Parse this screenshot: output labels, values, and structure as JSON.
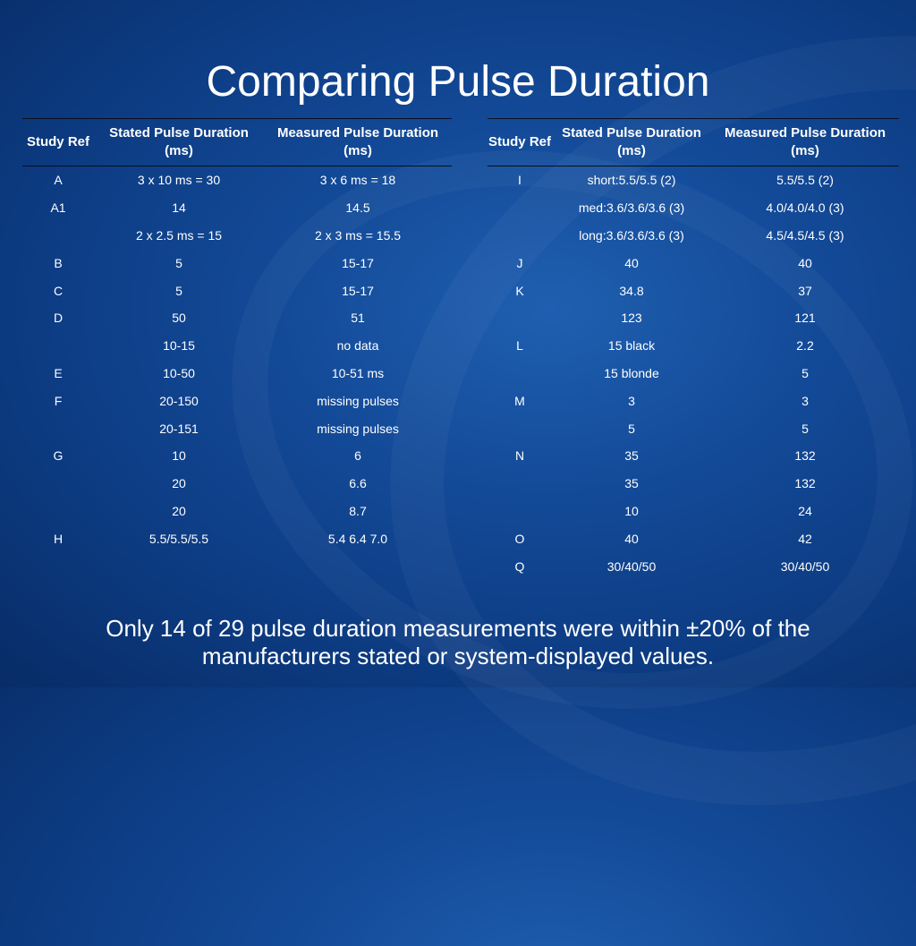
{
  "slide": {
    "title": "Comparing Pulse Duration",
    "footer": "Only 14 of 29 pulse duration measurements were within ±20% of the manufacturers stated or system-displayed values."
  },
  "tables": {
    "columns": [
      "Study Ref",
      "Stated Pulse Duration (ms)",
      "Measured Pulse Duration (ms)"
    ],
    "left_rows": [
      [
        "A",
        "3 x 10 ms = 30",
        "3 x 6 ms = 18"
      ],
      [
        "A1",
        "14",
        "14.5"
      ],
      [
        "",
        "2 x 2.5 ms = 15",
        "2 x 3 ms = 15.5"
      ],
      [
        "B",
        "5",
        "15-17"
      ],
      [
        "C",
        "5",
        "15-17"
      ],
      [
        "D",
        "50",
        "51"
      ],
      [
        "",
        "10-15",
        "no data"
      ],
      [
        "E",
        "10-50",
        "10-51 ms"
      ],
      [
        "F",
        "20-150",
        "missing pulses"
      ],
      [
        "",
        "20-151",
        "missing pulses"
      ],
      [
        "G",
        "10",
        "6"
      ],
      [
        "",
        "20",
        "6.6"
      ],
      [
        "",
        "20",
        "8.7"
      ],
      [
        "H",
        "5.5/5.5/5.5",
        "5.4 6.4 7.0"
      ]
    ],
    "right_rows": [
      [
        "I",
        "short:5.5/5.5 (2)",
        "5.5/5.5 (2)"
      ],
      [
        "",
        "med:3.6/3.6/3.6 (3)",
        "4.0/4.0/4.0 (3)"
      ],
      [
        "",
        "long:3.6/3.6/3.6 (3)",
        "4.5/4.5/4.5 (3)"
      ],
      [
        "J",
        "40",
        "40"
      ],
      [
        "K",
        "34.8",
        "37"
      ],
      [
        "",
        "123",
        "121"
      ],
      [
        "L",
        "15 black",
        "2.2"
      ],
      [
        "",
        "15 blonde",
        "5"
      ],
      [
        "M",
        "3",
        "3"
      ],
      [
        "",
        "5",
        "5"
      ],
      [
        "N",
        "35",
        "132"
      ],
      [
        "",
        "35",
        "132"
      ],
      [
        "",
        "10",
        "24"
      ],
      [
        "O",
        "40",
        "42"
      ],
      [
        "Q",
        "30/40/50",
        "30/40/50"
      ]
    ]
  }
}
